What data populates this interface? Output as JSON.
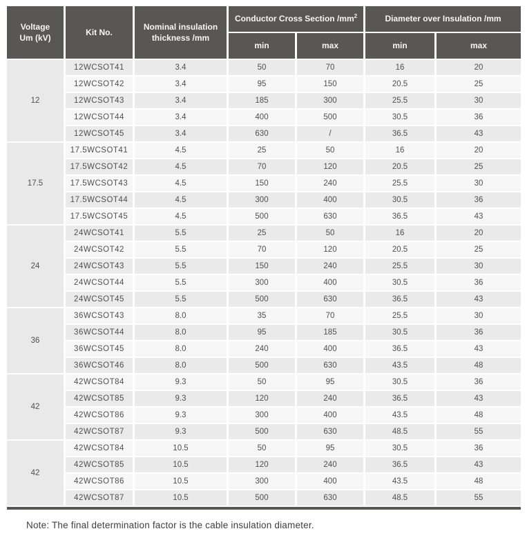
{
  "table": {
    "header": {
      "voltage_line1": "Voltage",
      "voltage_line2": "Um (kV)",
      "kit": "Kit No.",
      "thickness_line1": "Nominal insulation",
      "thickness_line2": "thickness /mm",
      "ccs_label": "Conductor Cross Section /mm",
      "ccs_sup": "2",
      "doi_label": "Diameter over Insulation /mm",
      "min": "min",
      "max": "max"
    },
    "columns": [
      "Voltage Um (kV)",
      "Kit No.",
      "Nominal insulation thickness /mm",
      "Conductor Cross Section min",
      "Conductor Cross Section max",
      "Diameter over Insulation min",
      "Diameter over Insulation max"
    ],
    "groups": [
      {
        "voltage": "12",
        "rows": [
          [
            "12WCSOT41",
            "3.4",
            "50",
            "70",
            "16",
            "20"
          ],
          [
            "12WCSOT42",
            "3.4",
            "95",
            "150",
            "20.5",
            "25"
          ],
          [
            "12WCSOT43",
            "3.4",
            "185",
            "300",
            "25.5",
            "30"
          ],
          [
            "12WCSOT44",
            "3.4",
            "400",
            "500",
            "30.5",
            "36"
          ],
          [
            "12WCSOT45",
            "3.4",
            "630",
            "/",
            "36.5",
            "43"
          ]
        ]
      },
      {
        "voltage": "17.5",
        "rows": [
          [
            "17.5WCSOT41",
            "4.5",
            "25",
            "50",
            "16",
            "20"
          ],
          [
            "17.5WCSOT42",
            "4.5",
            "70",
            "120",
            "20.5",
            "25"
          ],
          [
            "17.5WCSOT43",
            "4.5",
            "150",
            "240",
            "25.5",
            "30"
          ],
          [
            "17.5WCSOT44",
            "4.5",
            "300",
            "400",
            "30.5",
            "36"
          ],
          [
            "17.5WCSOT45",
            "4.5",
            "500",
            "630",
            "36.5",
            "43"
          ]
        ]
      },
      {
        "voltage": "24",
        "rows": [
          [
            "24WCSOT41",
            "5.5",
            "25",
            "50",
            "16",
            "20"
          ],
          [
            "24WCSOT42",
            "5.5",
            "70",
            "120",
            "20.5",
            "25"
          ],
          [
            "24WCSOT43",
            "5.5",
            "150",
            "240",
            "25.5",
            "30"
          ],
          [
            "24WCSOT44",
            "5.5",
            "300",
            "400",
            "30.5",
            "36"
          ],
          [
            "24WCSOT45",
            "5.5",
            "500",
            "630",
            "36.5",
            "43"
          ]
        ]
      },
      {
        "voltage": "36",
        "rows": [
          [
            "36WCSOT43",
            "8.0",
            "35",
            "70",
            "25.5",
            "30"
          ],
          [
            "36WCSOT44",
            "8.0",
            "95",
            "185",
            "30.5",
            "36"
          ],
          [
            "36WCSOT45",
            "8.0",
            "240",
            "400",
            "36.5",
            "43"
          ],
          [
            "36WCSOT46",
            "8.0",
            "500",
            "630",
            "43.5",
            "48"
          ]
        ]
      },
      {
        "voltage": "42",
        "rows": [
          [
            "42WCSOT84",
            "9.3",
            "50",
            "95",
            "30.5",
            "36"
          ],
          [
            "42WCSOT85",
            "9.3",
            "120",
            "240",
            "36.5",
            "43"
          ],
          [
            "42WCSOT86",
            "9.3",
            "300",
            "400",
            "43.5",
            "48"
          ],
          [
            "42WCSOT87",
            "9.3",
            "500",
            "630",
            "48.5",
            "55"
          ]
        ]
      },
      {
        "voltage": "42",
        "rows": [
          [
            "42WCSOT84",
            "10.5",
            "50",
            "95",
            "30.5",
            "36"
          ],
          [
            "42WCSOT85",
            "10.5",
            "120",
            "240",
            "36.5",
            "43"
          ],
          [
            "42WCSOT86",
            "10.5",
            "300",
            "400",
            "43.5",
            "48"
          ],
          [
            "42WCSOT87",
            "10.5",
            "500",
            "630",
            "48.5",
            "55"
          ]
        ]
      }
    ]
  },
  "note": "Note: The final determination factor is the cable insulation diameter.",
  "colors": {
    "header_bg": "#595656",
    "header_text": "#f7f6f5",
    "row_odd": "#eaeaea",
    "row_even": "#f7f7f7",
    "voltage_column_bg": "#e9e9e9",
    "cell_text": "#4f4f4f",
    "bottom_rule": "#595656"
  }
}
